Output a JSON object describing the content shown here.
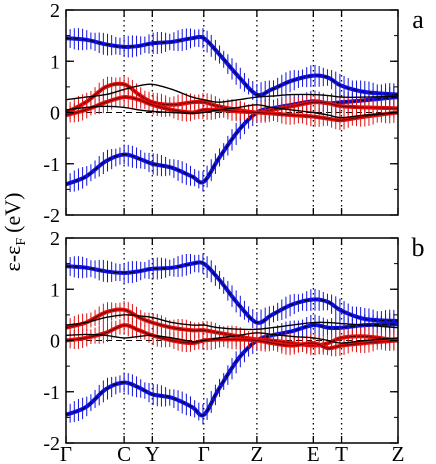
{
  "ylabel_main": "ε-ε",
  "ylabel_sub": "F",
  "ylabel_unit": "(eV)",
  "kpath": [
    "Γ",
    "C",
    "Y",
    "Γ",
    "Z",
    "E",
    "T",
    "Z"
  ],
  "colors": {
    "blue": "#1010e0",
    "red": "#e01010",
    "black": "#000000",
    "axis": "#000000"
  },
  "chart_data": [
    {
      "type": "line",
      "panel_label": "a",
      "ylim": [
        -2,
        2
      ],
      "yticks": [
        -2,
        -1,
        0,
        1,
        2
      ],
      "x_kpoints": [
        "Γ",
        "C",
        "Y",
        "Γ",
        "Z",
        "E",
        "T",
        "Z"
      ],
      "kpoint_positions": [
        0,
        0.175,
        0.26,
        0.415,
        0.575,
        0.745,
        0.83,
        1.0
      ],
      "grid": "vertical dotted lines at k-points; dashed line at ε-εF = 0",
      "series": [
        {
          "color": "blue",
          "style": "fat band",
          "x": [
            0,
            0.06,
            0.12,
            0.175,
            0.22,
            0.26,
            0.32,
            0.38,
            0.415,
            0.46,
            0.52,
            0.575,
            0.62,
            0.68,
            0.745,
            0.79,
            0.83,
            0.9,
            1.0
          ],
          "values": [
            1.45,
            1.42,
            1.33,
            1.28,
            1.3,
            1.35,
            1.38,
            1.45,
            1.45,
            1.15,
            0.7,
            0.35,
            0.45,
            0.62,
            0.72,
            0.68,
            0.52,
            0.4,
            0.35
          ]
        },
        {
          "color": "blue",
          "style": "fat band",
          "x": [
            0,
            0.06,
            0.12,
            0.175,
            0.22,
            0.26,
            0.32,
            0.38,
            0.415,
            0.46,
            0.52,
            0.575,
            0.62,
            0.68,
            0.745,
            0.79,
            0.83,
            0.9,
            1.0
          ],
          "values": [
            -1.4,
            -1.25,
            -0.95,
            -0.82,
            -0.9,
            -1.0,
            -1.08,
            -1.25,
            -1.35,
            -0.9,
            -0.35,
            0.0,
            0.08,
            0.15,
            0.22,
            0.18,
            0.2,
            0.24,
            0.3
          ]
        },
        {
          "color": "red",
          "style": "fat band",
          "x": [
            0,
            0.06,
            0.12,
            0.175,
            0.22,
            0.26,
            0.32,
            0.38,
            0.415,
            0.46,
            0.52,
            0.575,
            0.62,
            0.68,
            0.745,
            0.79,
            0.83,
            0.9,
            1.0
          ],
          "values": [
            0.0,
            0.2,
            0.5,
            0.55,
            0.35,
            0.2,
            0.15,
            0.2,
            0.2,
            0.12,
            0.05,
            0.0,
            0.05,
            0.12,
            0.2,
            0.18,
            0.12,
            0.1,
            0.08
          ]
        },
        {
          "color": "red",
          "style": "fat band",
          "x": [
            0,
            0.06,
            0.12,
            0.175,
            0.22,
            0.26,
            0.32,
            0.38,
            0.415,
            0.46,
            0.52,
            0.575,
            0.62,
            0.68,
            0.745,
            0.79,
            0.83,
            0.9,
            1.0
          ],
          "values": [
            -0.05,
            0.05,
            0.2,
            0.3,
            0.25,
            0.15,
            0.05,
            0.0,
            0.05,
            0.05,
            0.02,
            0.0,
            -0.02,
            -0.05,
            -0.08,
            -0.12,
            -0.15,
            -0.08,
            0.0
          ]
        },
        {
          "color": "black",
          "style": "thin",
          "x": [
            0,
            0.06,
            0.12,
            0.175,
            0.22,
            0.26,
            0.32,
            0.38,
            0.415,
            0.46,
            0.52,
            0.575,
            0.62,
            0.68,
            0.745,
            0.79,
            0.83,
            0.9,
            1.0
          ],
          "values": [
            0.25,
            0.3,
            0.35,
            0.45,
            0.52,
            0.55,
            0.45,
            0.3,
            0.25,
            0.2,
            0.25,
            0.3,
            0.32,
            0.35,
            0.35,
            0.33,
            0.3,
            0.3,
            0.32
          ]
        },
        {
          "color": "black",
          "style": "thin",
          "x": [
            0,
            0.06,
            0.12,
            0.175,
            0.22,
            0.26,
            0.32,
            0.38,
            0.415,
            0.46,
            0.52,
            0.575,
            0.62,
            0.68,
            0.745,
            0.79,
            0.83,
            0.9,
            1.0
          ],
          "values": [
            0.05,
            0.1,
            0.12,
            0.1,
            0.05,
            0.02,
            0.0,
            -0.02,
            0.0,
            0.05,
            0.1,
            0.15,
            0.1,
            0.05,
            0.0,
            -0.05,
            -0.1,
            -0.05,
            0.0
          ]
        }
      ]
    },
    {
      "type": "line",
      "panel_label": "b",
      "ylim": [
        -2,
        2
      ],
      "yticks": [
        -2,
        -1,
        0,
        1,
        2
      ],
      "x_kpoints": [
        "Γ",
        "C",
        "Y",
        "Γ",
        "Z",
        "E",
        "T",
        "Z"
      ],
      "kpoint_positions": [
        0,
        0.175,
        0.26,
        0.415,
        0.575,
        0.745,
        0.83,
        1.0
      ],
      "grid": "vertical dotted lines at k-points; dashed line at ε-εF = 0",
      "series": [
        {
          "color": "blue",
          "style": "fat band",
          "x": [
            0,
            0.06,
            0.12,
            0.175,
            0.22,
            0.26,
            0.32,
            0.38,
            0.415,
            0.46,
            0.52,
            0.575,
            0.62,
            0.68,
            0.745,
            0.79,
            0.83,
            0.9,
            1.0
          ],
          "values": [
            1.45,
            1.42,
            1.35,
            1.32,
            1.35,
            1.4,
            1.42,
            1.5,
            1.5,
            1.2,
            0.7,
            0.35,
            0.5,
            0.7,
            0.8,
            0.75,
            0.58,
            0.42,
            0.38
          ]
        },
        {
          "color": "blue",
          "style": "fat band",
          "x": [
            0,
            0.06,
            0.12,
            0.175,
            0.22,
            0.26,
            0.32,
            0.38,
            0.415,
            0.46,
            0.52,
            0.575,
            0.62,
            0.68,
            0.745,
            0.79,
            0.83,
            0.9,
            1.0
          ],
          "values": [
            -1.45,
            -1.3,
            -0.95,
            -0.82,
            -0.92,
            -1.05,
            -1.12,
            -1.3,
            -1.45,
            -0.95,
            -0.35,
            0.0,
            0.1,
            0.18,
            0.3,
            0.25,
            0.25,
            0.3,
            0.32
          ]
        },
        {
          "color": "red",
          "style": "fat band",
          "x": [
            0,
            0.06,
            0.12,
            0.175,
            0.22,
            0.26,
            0.32,
            0.38,
            0.415,
            0.46,
            0.52,
            0.575,
            0.62,
            0.68,
            0.745,
            0.79,
            0.83,
            0.9,
            1.0
          ],
          "values": [
            0.25,
            0.35,
            0.55,
            0.6,
            0.45,
            0.35,
            0.25,
            0.2,
            0.2,
            0.15,
            0.08,
            0.02,
            0.0,
            -0.05,
            -0.1,
            -0.05,
            0.05,
            0.08,
            0.0
          ]
        },
        {
          "color": "red",
          "style": "fat band",
          "x": [
            0,
            0.06,
            0.12,
            0.175,
            0.22,
            0.26,
            0.32,
            0.38,
            0.415,
            0.46,
            0.52,
            0.575,
            0.62,
            0.68,
            0.745,
            0.79,
            0.83,
            0.9,
            1.0
          ],
          "values": [
            0.0,
            0.05,
            0.15,
            0.3,
            0.2,
            0.1,
            0.0,
            -0.05,
            0.0,
            0.02,
            0.02,
            0.0,
            -0.05,
            -0.1,
            -0.05,
            -0.15,
            -0.1,
            -0.05,
            0.0
          ]
        },
        {
          "color": "black",
          "style": "thin",
          "x": [
            0,
            0.06,
            0.12,
            0.175,
            0.22,
            0.26,
            0.32,
            0.38,
            0.415,
            0.46,
            0.52,
            0.575,
            0.62,
            0.68,
            0.745,
            0.79,
            0.83,
            0.9,
            1.0
          ],
          "values": [
            0.3,
            0.35,
            0.45,
            0.5,
            0.48,
            0.45,
            0.35,
            0.3,
            0.3,
            0.25,
            0.22,
            0.22,
            0.25,
            0.3,
            0.35,
            0.35,
            0.33,
            0.3,
            0.25
          ]
        },
        {
          "color": "black",
          "style": "thin",
          "x": [
            0,
            0.06,
            0.12,
            0.175,
            0.22,
            0.26,
            0.32,
            0.38,
            0.415,
            0.46,
            0.52,
            0.575,
            0.62,
            0.68,
            0.745,
            0.79,
            0.83,
            0.9,
            1.0
          ],
          "values": [
            0.1,
            0.12,
            0.1,
            0.05,
            0.08,
            0.1,
            0.05,
            -0.02,
            0.0,
            0.05,
            0.1,
            0.15,
            0.12,
            0.08,
            0.05,
            0.0,
            -0.05,
            0.0,
            0.05
          ]
        }
      ]
    }
  ]
}
